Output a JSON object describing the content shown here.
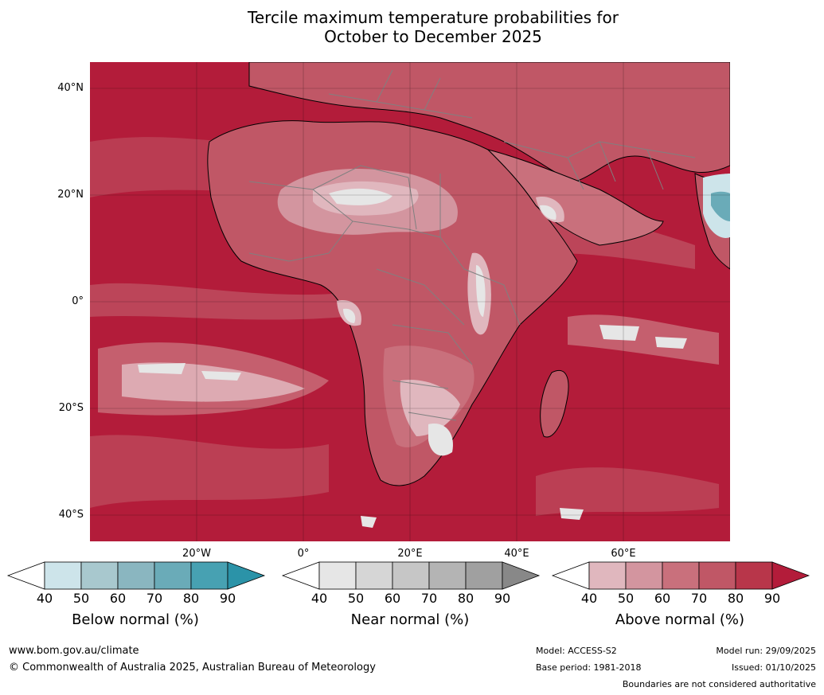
{
  "title": {
    "line1": "Tercile maximum temperature probabilities for",
    "line2": "October to December 2025"
  },
  "map": {
    "lat_labels": [
      "40°N",
      "20°N",
      "0°",
      "20°S",
      "40°S"
    ],
    "lon_labels": [
      "20°W",
      "0°",
      "20°E",
      "40°E",
      "60°E"
    ],
    "ocean_color": "#b31c3a",
    "land_border_color": "#000000",
    "country_border_color": "#808080"
  },
  "colorbars": [
    {
      "name": "below",
      "label": "Below normal (%)",
      "ticks": [
        "40",
        "50",
        "60",
        "70",
        "80",
        "90"
      ],
      "colors": [
        "#ffffff",
        "#cde4ea",
        "#a8c8ce",
        "#8ab6c0",
        "#6aabb8",
        "#47a1b2",
        "#2b93a8"
      ]
    },
    {
      "name": "near",
      "label": "Near normal (%)",
      "ticks": [
        "40",
        "50",
        "60",
        "70",
        "80",
        "90"
      ],
      "colors": [
        "#ffffff",
        "#e6e6e6",
        "#d6d6d6",
        "#c6c6c6",
        "#b4b4b4",
        "#a0a0a0",
        "#888888"
      ]
    },
    {
      "name": "above",
      "label": "Above normal (%)",
      "ticks": [
        "40",
        "50",
        "60",
        "70",
        "80",
        "90"
      ],
      "colors": [
        "#ffffff",
        "#e0b7be",
        "#d3959f",
        "#c9707c",
        "#c05766",
        "#b8364a",
        "#b31c3a"
      ]
    }
  ],
  "footer": {
    "website": "www.bom.gov.au/climate",
    "copyright": "© Commonwealth of Australia 2025, Australian Bureau of Meteorology",
    "model": "Model: ACCESS-S2",
    "base_period": "Base period: 1981-2018",
    "model_run": "Model run: 29/09/2025",
    "issued": "Issued: 01/10/2025",
    "boundaries_note": "Boundaries are not considered authoritative"
  }
}
